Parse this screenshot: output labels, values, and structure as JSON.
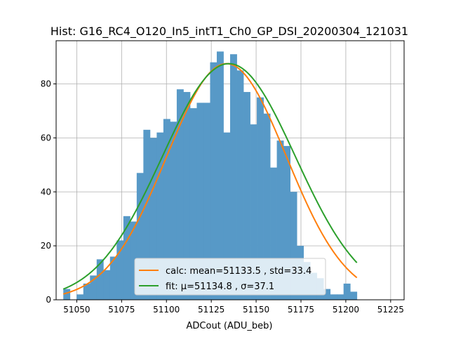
{
  "chart_data": {
    "type": "bar",
    "title": "Hist: G16_RC4_O120_In5_intT1_Ch0_GP_DSI_20200304_121031",
    "xlabel": "ADCout (ADU_beb)",
    "ylabel": "",
    "xlim": [
      51038.5,
      51232.5
    ],
    "ylim": [
      0,
      96
    ],
    "xticks": [
      51050,
      51075,
      51100,
      51125,
      51150,
      51175,
      51200,
      51225
    ],
    "yticks": [
      0,
      20,
      40,
      60,
      80
    ],
    "grid": true,
    "legend_position": "lower-center",
    "bar_color": "#5799c7",
    "bins": {
      "start": 51042.5,
      "width": 3.72,
      "counts": [
        4,
        0,
        2,
        6,
        9,
        15,
        11,
        16,
        22,
        31,
        29,
        47,
        63,
        60,
        62,
        67,
        66,
        78,
        77,
        71,
        73,
        73,
        88,
        92,
        62,
        91,
        85,
        77,
        65,
        75,
        69,
        49,
        59,
        57,
        40,
        20,
        14,
        10,
        8,
        4,
        2,
        2,
        6,
        3
      ]
    },
    "series": [
      {
        "name": "calc: mean=51133.5 , std=33.4",
        "kind": "gaussian",
        "mu": 51133.5,
        "sigma": 33.4,
        "amplitude": 87.5,
        "color": "#ff7f0e"
      },
      {
        "name": "fit: μ=51134.8 , σ=37.1",
        "kind": "gaussian",
        "mu": 51134.8,
        "sigma": 37.1,
        "amplitude": 87.5,
        "color": "#2ca02c"
      }
    ]
  }
}
